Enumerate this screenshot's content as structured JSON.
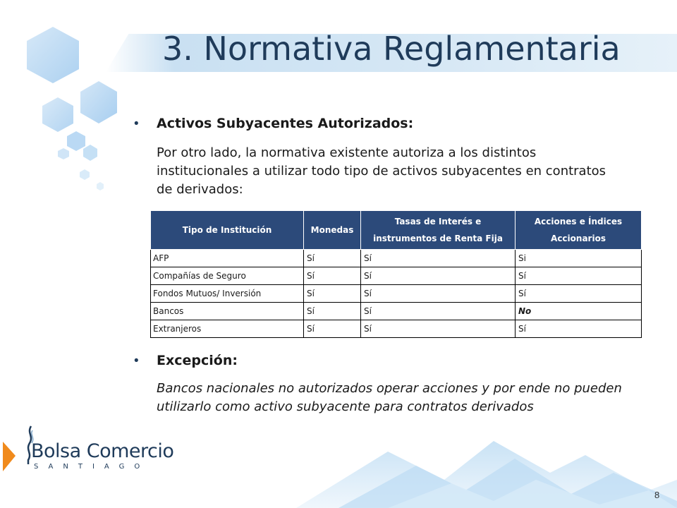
{
  "slide": {
    "title": "3. Normativa Reglamentaria",
    "page_number": "8"
  },
  "section1": {
    "heading": "Activos Subyacentes Autorizados:",
    "paragraph": "Por otro lado, la normativa existente autoriza a los distintos institucionales a utilizar todo tipo de activos subyacentes en contratos de derivados:"
  },
  "table": {
    "headers": [
      "Tipo de Institución",
      "Monedas",
      "Tasas de Interés e instrumentos de Renta Fija",
      "Acciones e Índices Accionarios"
    ],
    "rows": [
      [
        "AFP",
        "Sí",
        "Sí",
        "Si"
      ],
      [
        "Compañías de Seguro",
        "Sí",
        "Sí",
        "Sí"
      ],
      [
        "Fondos Mutuos/ Inversión",
        "Sí",
        "Sí",
        "Sí"
      ],
      [
        "Bancos",
        "Sí",
        "Sí",
        "No"
      ],
      [
        "Extranjeros",
        "Sí",
        "Sí",
        "Sí"
      ]
    ]
  },
  "section2": {
    "heading": "Excepción:",
    "paragraph": "Bancos nacionales no autorizados operar acciones y por ende no pueden utilizarlo como activo subyacente para contratos derivados"
  },
  "logo": {
    "name": "Bolsa Comercio",
    "subtitle": "SANTIAGO"
  },
  "colors": {
    "title": "#1f3b5a",
    "table_header": "#2c4a7a",
    "logo_orange": "#f08a1c"
  }
}
